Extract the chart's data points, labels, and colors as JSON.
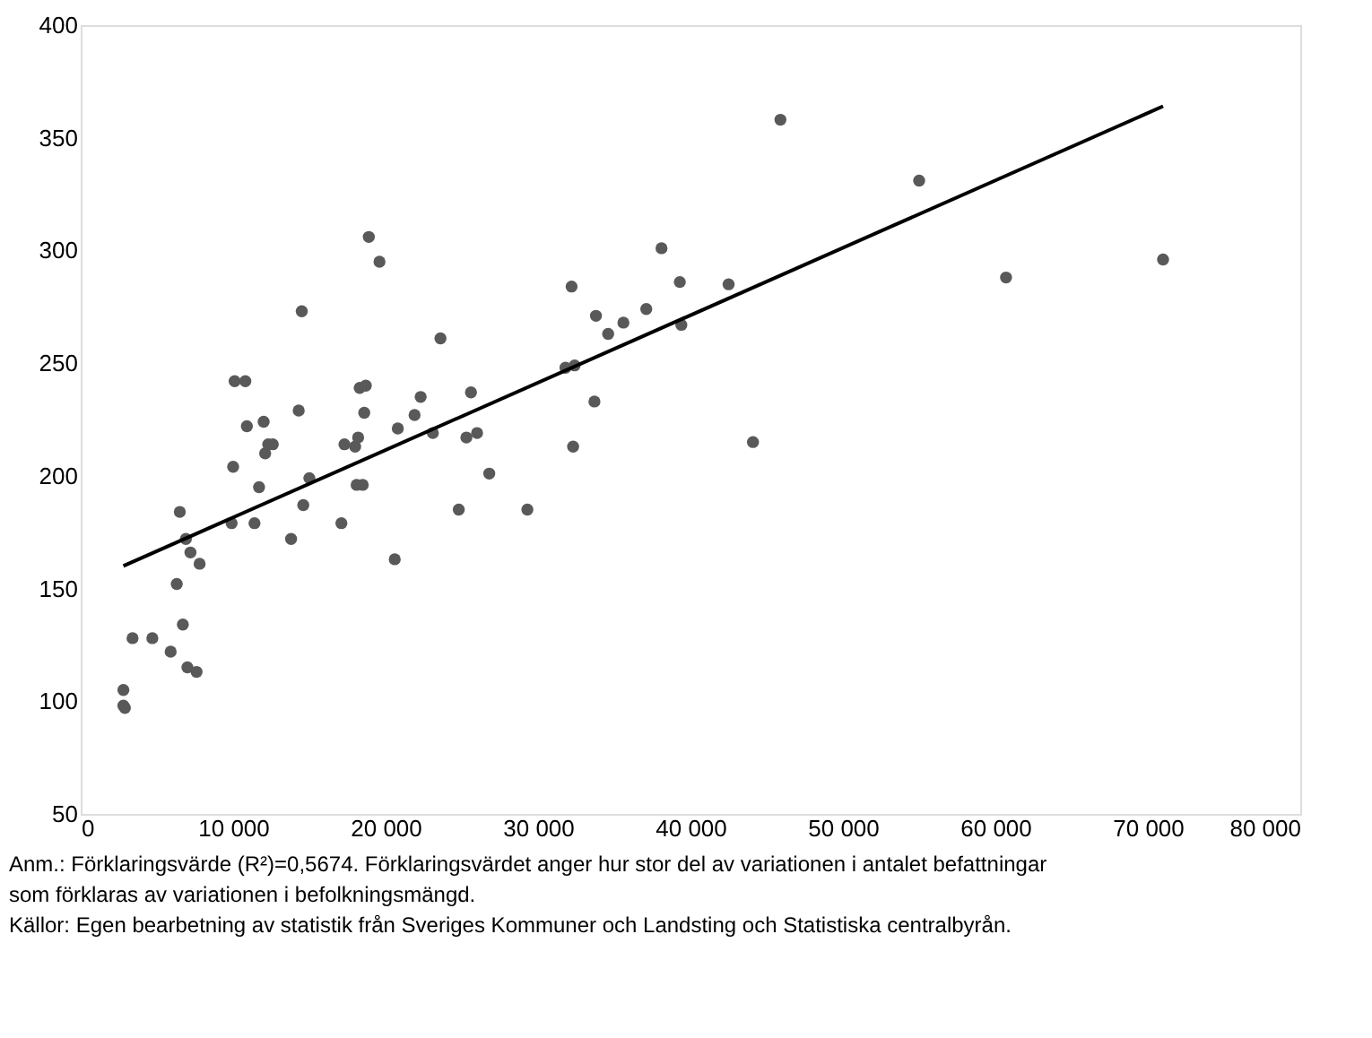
{
  "chart_data": {
    "type": "scatter",
    "series": [
      {
        "color": "#595959",
        "marker": "circle",
        "x": [
          2800,
          2900,
          2800,
          3400,
          4700,
          5900,
          6300,
          6500,
          6700,
          6900,
          7000,
          7200,
          7600,
          7800,
          9900,
          10000,
          10100,
          10800,
          10900,
          11400,
          11700,
          12000,
          12100,
          12300,
          12600,
          13800,
          14300,
          14500,
          14600,
          15000,
          17100,
          17300,
          18000,
          18100,
          18200,
          18300,
          18500,
          18600,
          18700,
          18900,
          19600,
          20600,
          20800,
          21900,
          22300,
          23100,
          23600,
          24800,
          25300,
          25600,
          26000,
          26800,
          29300,
          31800,
          32200,
          32300,
          32400,
          33700,
          33800,
          34600,
          35600,
          37100,
          38100,
          39300,
          39400,
          42500,
          44100,
          45900,
          55000,
          60700,
          71000
        ],
        "values": [
          98,
          97,
          105,
          128,
          128,
          122,
          152,
          184,
          134,
          172,
          115,
          166,
          113,
          161,
          179,
          204,
          242,
          242,
          222,
          179,
          195,
          224,
          210,
          214,
          214,
          172,
          229,
          273,
          187,
          199,
          179,
          214,
          213,
          196,
          217,
          239,
          196,
          228,
          240,
          306,
          295,
          163,
          221,
          227,
          235,
          219,
          261,
          185,
          217,
          237,
          219,
          201,
          185,
          248,
          284,
          213,
          249,
          233,
          271,
          263,
          268,
          274,
          301,
          286,
          267,
          285,
          215,
          358,
          331,
          288,
          296
        ]
      },
      {
        "type": "line",
        "color": "#000000",
        "line_style": "solid",
        "x": [
          2800,
          71000
        ],
        "values": [
          160,
          364
        ]
      }
    ],
    "xlim": [
      0,
      80000
    ],
    "xticks": [
      0,
      {
        "value": 10000,
        "label": "10 000"
      },
      {
        "value": 20000,
        "label": "20 000"
      },
      {
        "value": 30000,
        "label": "30 000"
      },
      {
        "value": 40000,
        "label": "40 000"
      },
      {
        "value": 50000,
        "label": "50 000"
      },
      {
        "value": 60000,
        "label": "60 000"
      },
      {
        "value": 70000,
        "label": "70 000"
      },
      {
        "value": 80000,
        "label": "80 000"
      }
    ],
    "ylim": [
      50,
      400
    ],
    "yticks": [
      50,
      100,
      150,
      200,
      250,
      300,
      350,
      400
    ],
    "grid": false,
    "annotations": [
      "Anm.: Förklaringsvärde (R²)=0,5674. Förklaringsvärdet anger hur stor del av variationen i antalet befattningar som förklaras av variationen i befolkningsmängd.",
      "Källor: Egen bearbetning av statistik från Sveriges Kommuner och Landsting och Statistiska centralbyrån."
    ]
  }
}
